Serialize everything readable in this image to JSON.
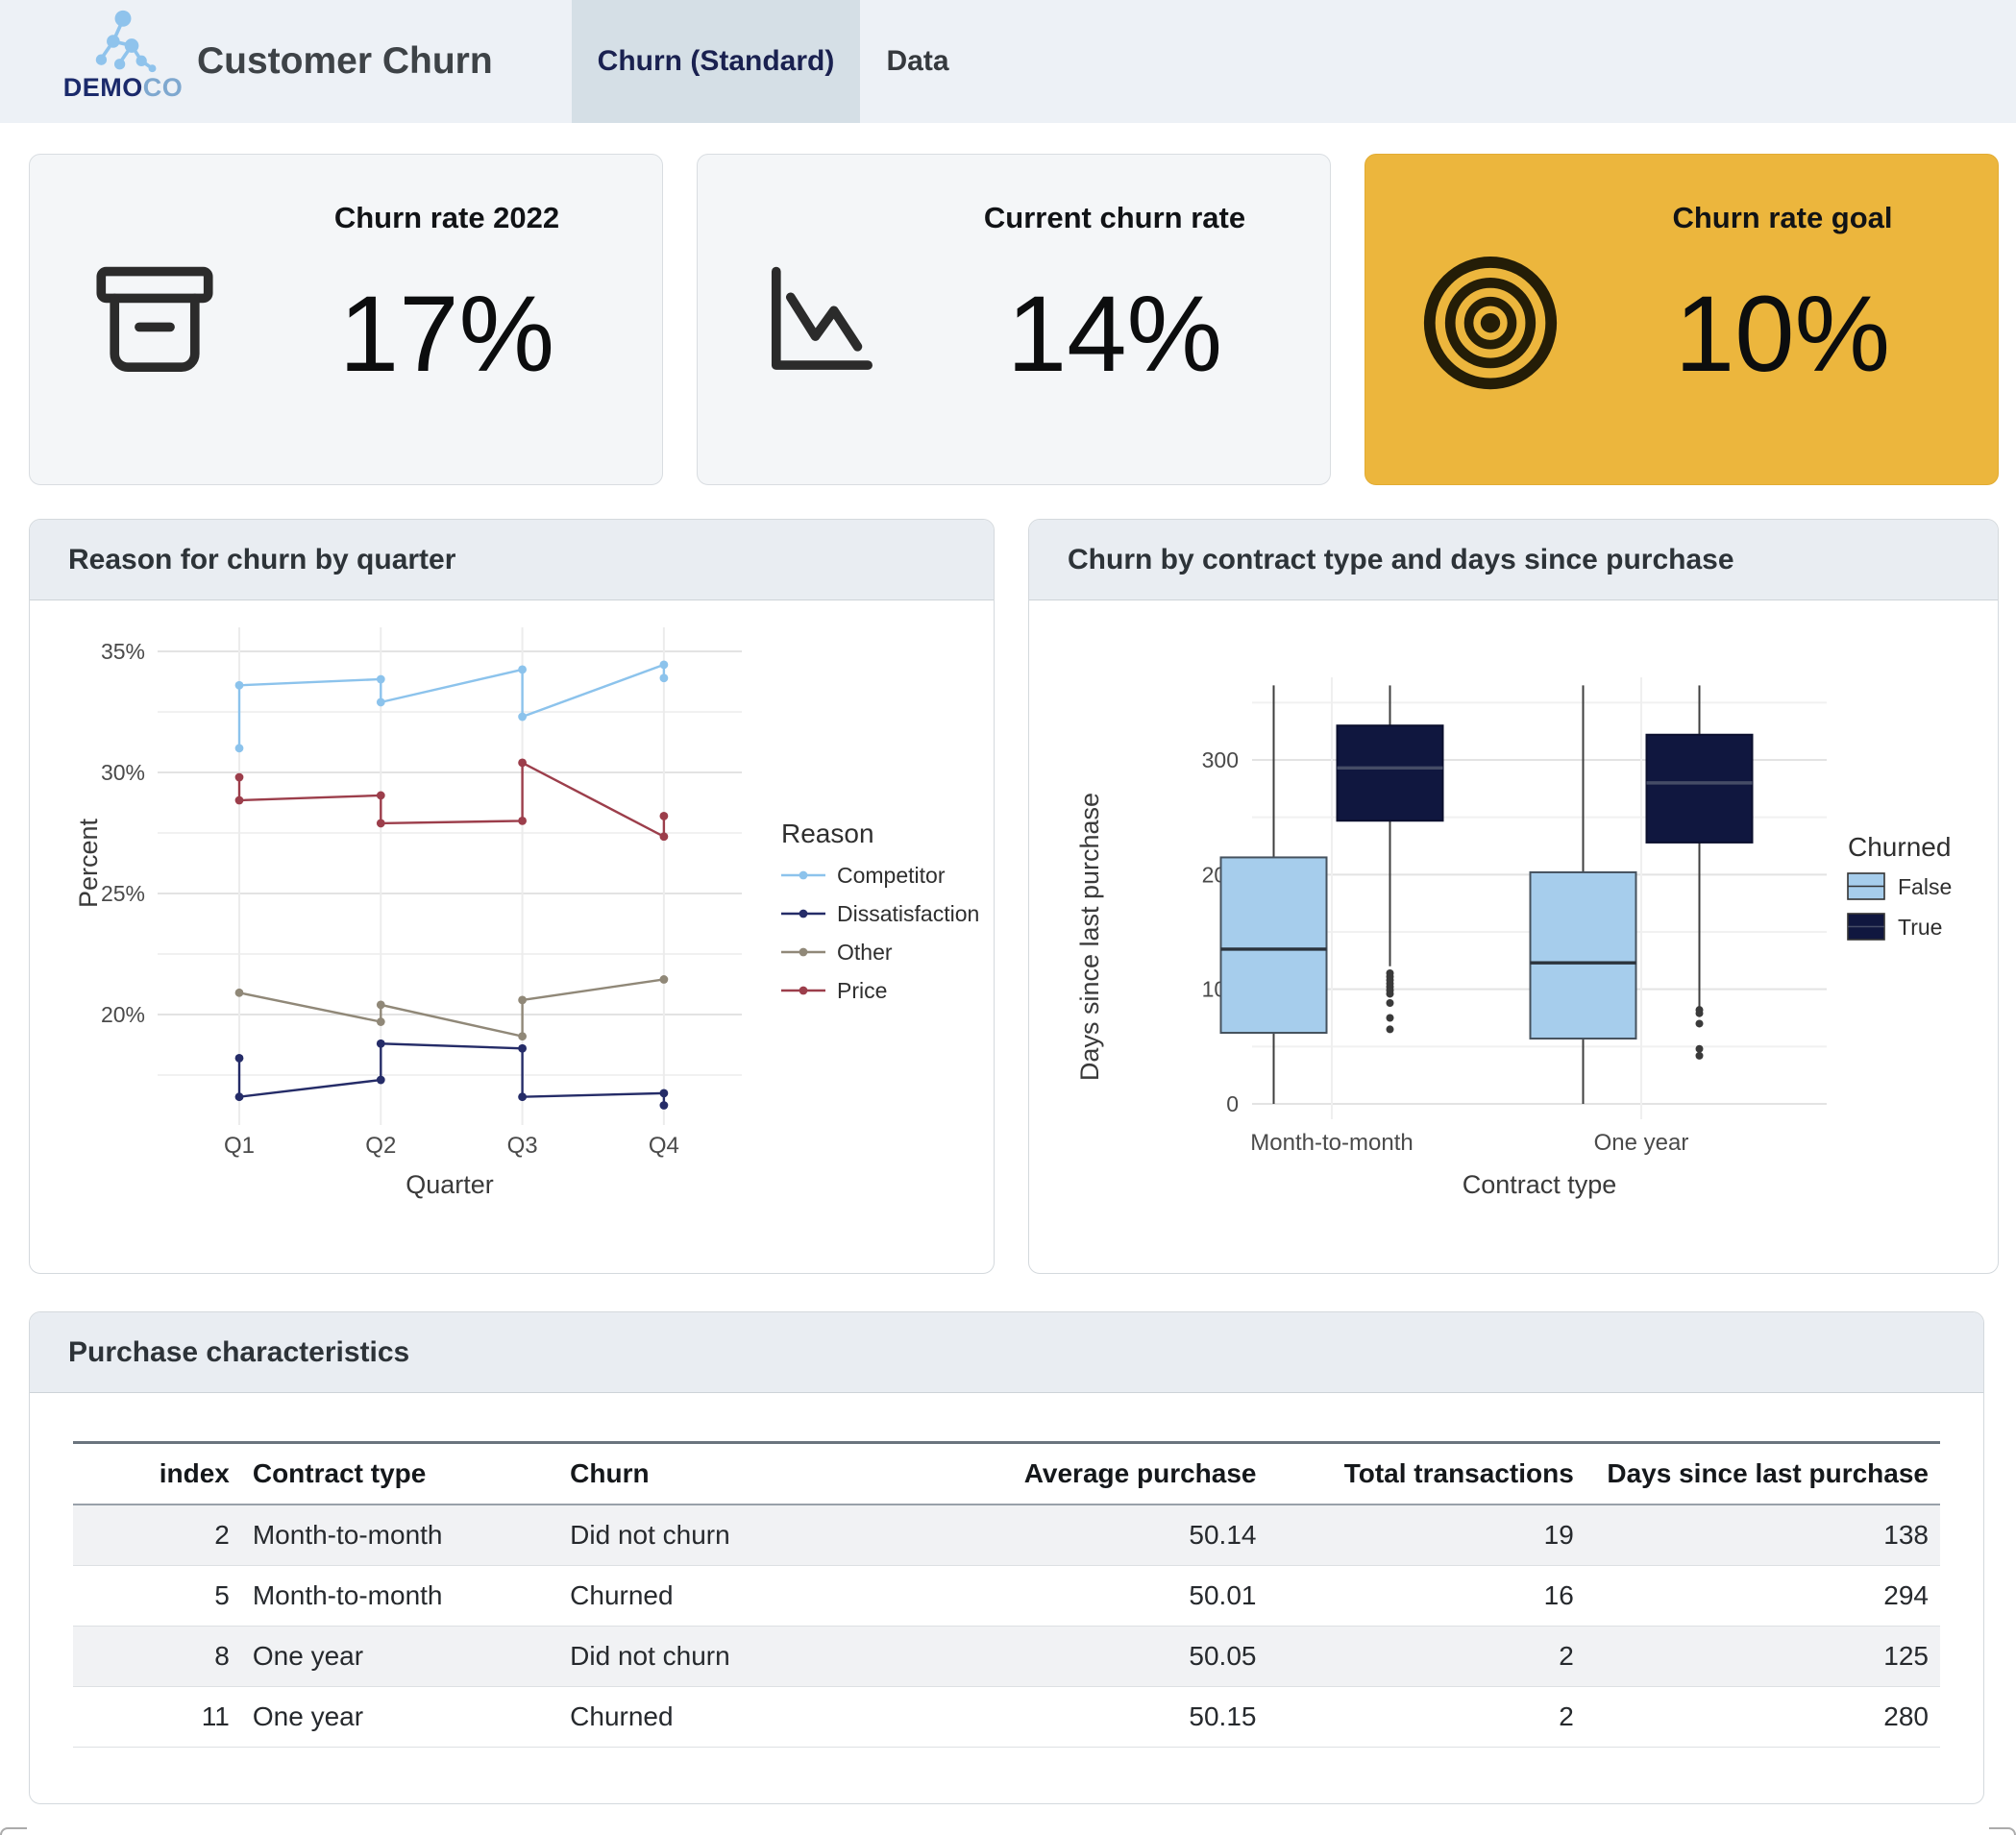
{
  "header": {
    "logo": {
      "brand_bold": "DEMO",
      "brand_light": "CO"
    },
    "app_title": "Customer Churn",
    "tabs": [
      {
        "label": "Churn (Standard)",
        "active": true
      },
      {
        "label": "Data",
        "active": false
      }
    ]
  },
  "kpis": [
    {
      "title": "Churn rate 2022",
      "value": "17%",
      "icon": "archive-box-icon",
      "highlight": false
    },
    {
      "title": "Current churn rate",
      "value": "14%",
      "icon": "chart-line-down-icon",
      "highlight": false
    },
    {
      "title": "Churn rate goal",
      "value": "10%",
      "icon": "target-icon",
      "highlight": true,
      "highlight_color": "#ecb63d"
    }
  ],
  "chart_data": [
    {
      "type": "line",
      "title": "Reason for churn by quarter",
      "xlabel": "Quarter",
      "ylabel": "Percent",
      "categories": [
        "Q1",
        "Q2",
        "Q3",
        "Q4"
      ],
      "y_ticks": [
        {
          "value": 35,
          "label": "35%"
        },
        {
          "value": 30,
          "label": "30%"
        },
        {
          "value": 25,
          "label": "25%"
        },
        {
          "value": 20,
          "label": "20%"
        }
      ],
      "y_minor_ticks": [
        32.5,
        27.5,
        22.5,
        17.5
      ],
      "ylim": [
        16,
        35.8
      ],
      "grid": true,
      "legend_title": "Reason",
      "legend_position": "right",
      "series": [
        {
          "name": "Competitor",
          "color": "#8cc3ec",
          "points": [
            [
              1,
              31.0
            ],
            [
              1,
              33.6
            ],
            [
              2,
              33.85
            ],
            [
              2,
              32.9
            ],
            [
              3,
              34.25
            ],
            [
              3,
              32.3
            ],
            [
              4,
              34.45
            ],
            [
              4,
              33.9
            ]
          ]
        },
        {
          "name": "Dissatisfaction",
          "color": "#252c68",
          "points": [
            [
              1,
              18.2
            ],
            [
              1,
              16.6
            ],
            [
              2,
              17.3
            ],
            [
              2,
              18.8
            ],
            [
              3,
              18.6
            ],
            [
              3,
              16.6
            ],
            [
              4,
              16.75
            ],
            [
              4,
              16.25
            ]
          ]
        },
        {
          "name": "Other",
          "color": "#908878",
          "points": [
            [
              1,
              20.9
            ],
            [
              2,
              19.7
            ],
            [
              2,
              20.4
            ],
            [
              3,
              19.1
            ],
            [
              3,
              20.6
            ],
            [
              4,
              21.45
            ]
          ]
        },
        {
          "name": "Price",
          "color": "#9c3e4b",
          "points": [
            [
              1,
              29.8
            ],
            [
              1,
              28.85
            ],
            [
              2,
              29.05
            ],
            [
              2,
              27.9
            ],
            [
              3,
              28.0
            ],
            [
              3,
              30.4
            ],
            [
              4,
              27.35
            ],
            [
              4,
              28.2
            ]
          ]
        }
      ]
    },
    {
      "type": "boxplot",
      "title": "Churn by contract type and days since purchase",
      "xlabel": "Contract type",
      "ylabel": "Days since last purchase",
      "categories": [
        "Month-to-month",
        "One year"
      ],
      "y_ticks": [
        {
          "value": 0,
          "label": "0"
        },
        {
          "value": 100,
          "label": "100"
        },
        {
          "value": 200,
          "label": "200"
        },
        {
          "value": 300,
          "label": "300"
        }
      ],
      "y_minor_ticks": [
        50,
        150,
        250,
        350
      ],
      "ylim": [
        0,
        380
      ],
      "grid": true,
      "legend_title": "Churned",
      "legend_position": "right",
      "series": [
        {
          "name": "False",
          "color": "#a6cdec",
          "border": "#46525e",
          "median_color": "#2b333c",
          "boxes": [
            {
              "category": "Month-to-month",
              "whisker_low": 0,
              "q1": 62,
              "median": 135,
              "q3": 215,
              "whisker_high": 365,
              "outliers": []
            },
            {
              "category": "One year",
              "whisker_low": 0,
              "q1": 57,
              "median": 123,
              "q3": 202,
              "whisker_high": 365,
              "outliers": []
            }
          ]
        },
        {
          "name": "True",
          "color": "#10173f",
          "border": "#0b0f2e",
          "median_color": "#454c66",
          "boxes": [
            {
              "category": "Month-to-month",
              "whisker_low": 120,
              "q1": 247,
              "median": 293,
              "q3": 330,
              "whisker_high": 365,
              "outliers": [
                114,
                111,
                108,
                105,
                102,
                99,
                96,
                88,
                75,
                65
              ]
            },
            {
              "category": "One year",
              "whisker_low": 85,
              "q1": 228,
              "median": 280,
              "q3": 322,
              "whisker_high": 365,
              "outliers": [
                82,
                79,
                70,
                48,
                42
              ]
            }
          ]
        }
      ]
    }
  ],
  "table": {
    "title": "Purchase characteristics",
    "columns": [
      {
        "label": "index",
        "align": "right"
      },
      {
        "label": "Contract type",
        "align": "left"
      },
      {
        "label": "Churn",
        "align": "left"
      },
      {
        "label": "Average purchase",
        "align": "right"
      },
      {
        "label": "Total transactions",
        "align": "right"
      },
      {
        "label": "Days since last purchase",
        "align": "right"
      }
    ],
    "rows": [
      [
        "2",
        "Month-to-month",
        "Did not churn",
        "50.14",
        "19",
        "138"
      ],
      [
        "5",
        "Month-to-month",
        "Churned",
        "50.01",
        "16",
        "294"
      ],
      [
        "8",
        "One year",
        "Did not churn",
        "50.05",
        "2",
        "125"
      ],
      [
        "11",
        "One year",
        "Churned",
        "50.15",
        "2",
        "280"
      ]
    ]
  },
  "colors": {
    "topbar_bg": "#edf1f6",
    "active_tab_bg": "#d5dfe6",
    "card_bg": "#f4f6f8",
    "accent_gold": "#ecb63d",
    "panel_head_bg": "#e9edf2"
  }
}
